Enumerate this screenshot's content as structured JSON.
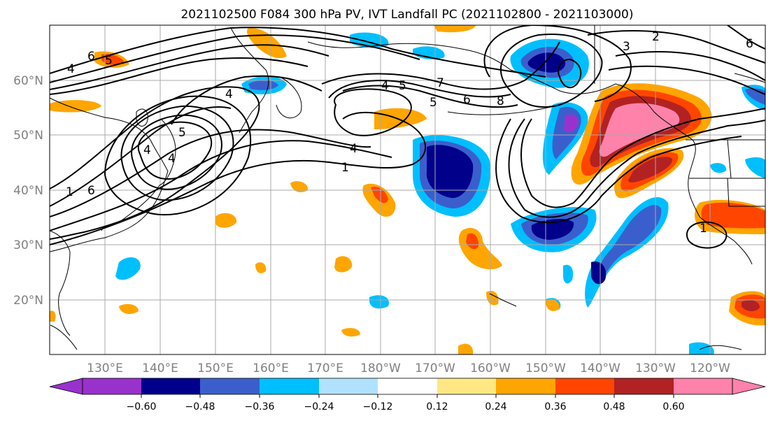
{
  "title": "2021102500 F084 300 hPa PV, IVT Landfall PC (2021102800 - 2021103000)",
  "lat_labels": [
    "60°N",
    "50°N",
    "40°N",
    "30°N",
    "20°N"
  ],
  "lon_labels": [
    "130°E",
    "140°E",
    "150°E",
    "160°E",
    "170°E",
    "180°W",
    "170°W",
    "160°W",
    "150°W",
    "140°W",
    "130°W",
    "120°W"
  ],
  "contour_labels": [
    "4",
    "6",
    "5",
    "4",
    "4",
    "5",
    "4",
    "5",
    "7",
    "6",
    "5",
    "4",
    "1",
    "6",
    "8",
    "3",
    "2",
    "6",
    "4",
    "1",
    "1"
  ],
  "colorbar": {
    "tick_labels": [
      "−0.60",
      "−0.48",
      "−0.36",
      "−0.24",
      "−0.12",
      "0.12",
      "0.24",
      "0.36",
      "0.48",
      "0.60"
    ],
    "colors": [
      "#9932cc",
      "#00008b",
      "#3a5fcd",
      "#00bfff",
      "#b0e2ff",
      "#ffffff",
      "#ffe883",
      "#ffa500",
      "#ff4500",
      "#b22222",
      "#ff82ab"
    ]
  },
  "colors": {
    "grid": "#aaaaaa",
    "axis_label": "#808080",
    "contour": "#000000"
  }
}
